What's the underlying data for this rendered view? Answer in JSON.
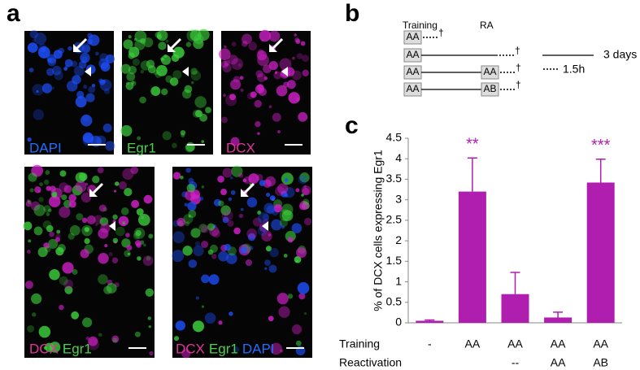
{
  "panel_labels": [
    "a",
    "b",
    "c"
  ],
  "micrographs": {
    "labels": [
      "DAPI",
      "Egr1",
      "DCX"
    ],
    "merge1": [
      "DCX",
      "Egr1"
    ],
    "merge2": [
      "DCX",
      "Egr1",
      "DAPI"
    ]
  },
  "protocol": {
    "training": "Training",
    "ra": "RA",
    "rows": [
      [
        "AA"
      ],
      [
        "AA"
      ],
      [
        "AA",
        "AA"
      ],
      [
        "AA",
        "AB"
      ]
    ],
    "dagger": "†",
    "legend": [
      "3 days",
      "1.5h"
    ]
  },
  "chart_data": {
    "type": "bar",
    "ylabel": "% of DCX cells expressing Egr1",
    "row_labels": [
      "Training",
      "Reactivation"
    ],
    "categories": [
      "-",
      "AA",
      "AA",
      "AA",
      "AA"
    ],
    "categories2": [
      null,
      null,
      "--",
      "AA",
      "AB"
    ],
    "values": [
      0.05,
      3.2,
      0.7,
      0.13,
      3.42
    ],
    "errors": [
      0.02,
      0.82,
      0.53,
      0.13,
      0.57
    ],
    "annotations": [
      null,
      "**",
      null,
      null,
      "***"
    ],
    "color": "#b01eb0",
    "ylim": [
      0,
      4.5
    ],
    "yticks": [
      0,
      0.5,
      1,
      1.5,
      2,
      2.5,
      3,
      3.5,
      4,
      4.5
    ]
  }
}
